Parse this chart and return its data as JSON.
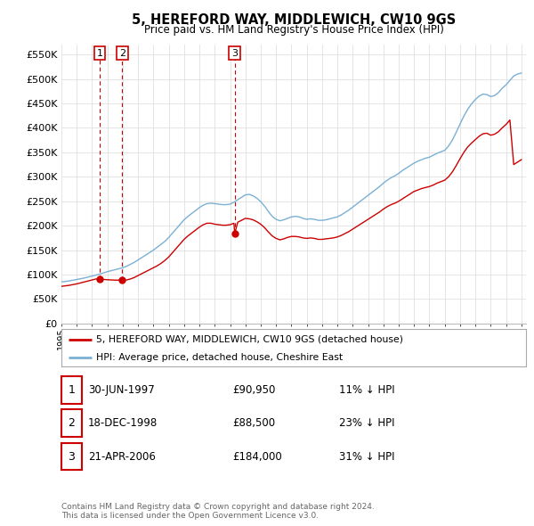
{
  "title": "5, HEREFORD WAY, MIDDLEWICH, CW10 9GS",
  "subtitle": "Price paid vs. HM Land Registry's House Price Index (HPI)",
  "ylim": [
    0,
    570000
  ],
  "yticks": [
    0,
    50000,
    100000,
    150000,
    200000,
    250000,
    300000,
    350000,
    400000,
    450000,
    500000,
    550000
  ],
  "ytick_labels": [
    "£0",
    "£50K",
    "£100K",
    "£150K",
    "£200K",
    "£250K",
    "£300K",
    "£350K",
    "£400K",
    "£450K",
    "£500K",
    "£550K"
  ],
  "xlim_start": 1995.0,
  "xlim_end": 2025.3,
  "sale_dates": [
    1997.496,
    1998.962,
    2006.306
  ],
  "sale_prices": [
    90950,
    88500,
    184000
  ],
  "sale_labels": [
    "1",
    "2",
    "3"
  ],
  "legend_red": "5, HEREFORD WAY, MIDDLEWICH, CW10 9GS (detached house)",
  "legend_blue": "HPI: Average price, detached house, Cheshire East",
  "table_rows": [
    [
      "1",
      "30-JUN-1997",
      "£90,950",
      "11% ↓ HPI"
    ],
    [
      "2",
      "18-DEC-1998",
      "£88,500",
      "23% ↓ HPI"
    ],
    [
      "3",
      "21-APR-2006",
      "£184,000",
      "31% ↓ HPI"
    ]
  ],
  "footer": "Contains HM Land Registry data © Crown copyright and database right 2024.\nThis data is licensed under the Open Government Licence v3.0.",
  "red_color": "#cc0000",
  "blue_color": "#7ab0d4",
  "grid_color": "#e0e0e0",
  "bg_color": "#ffffff",
  "hpi_x": [
    1995.0,
    1995.25,
    1995.5,
    1995.75,
    1996.0,
    1996.25,
    1996.5,
    1996.75,
    1997.0,
    1997.25,
    1997.5,
    1997.75,
    1998.0,
    1998.25,
    1998.5,
    1998.75,
    1999.0,
    1999.25,
    1999.5,
    1999.75,
    2000.0,
    2000.25,
    2000.5,
    2000.75,
    2001.0,
    2001.25,
    2001.5,
    2001.75,
    2002.0,
    2002.25,
    2002.5,
    2002.75,
    2003.0,
    2003.25,
    2003.5,
    2003.75,
    2004.0,
    2004.25,
    2004.5,
    2004.75,
    2005.0,
    2005.25,
    2005.5,
    2005.75,
    2006.0,
    2006.25,
    2006.5,
    2006.75,
    2007.0,
    2007.25,
    2007.5,
    2007.75,
    2008.0,
    2008.25,
    2008.5,
    2008.75,
    2009.0,
    2009.25,
    2009.5,
    2009.75,
    2010.0,
    2010.25,
    2010.5,
    2010.75,
    2011.0,
    2011.25,
    2011.5,
    2011.75,
    2012.0,
    2012.25,
    2012.5,
    2012.75,
    2013.0,
    2013.25,
    2013.5,
    2013.75,
    2014.0,
    2014.25,
    2014.5,
    2014.75,
    2015.0,
    2015.25,
    2015.5,
    2015.75,
    2016.0,
    2016.25,
    2016.5,
    2016.75,
    2017.0,
    2017.25,
    2017.5,
    2017.75,
    2018.0,
    2018.25,
    2018.5,
    2018.75,
    2019.0,
    2019.25,
    2019.5,
    2019.75,
    2020.0,
    2020.25,
    2020.5,
    2020.75,
    2021.0,
    2021.25,
    2021.5,
    2021.75,
    2022.0,
    2022.25,
    2022.5,
    2022.75,
    2023.0,
    2023.25,
    2023.5,
    2023.75,
    2024.0,
    2024.25,
    2024.5,
    2024.75,
    2025.0
  ],
  "hpi_y": [
    85000,
    86000,
    87000,
    88500,
    90000,
    91500,
    93000,
    95000,
    97000,
    99000,
    101000,
    103500,
    106000,
    108000,
    110000,
    112000,
    114000,
    117000,
    121000,
    125000,
    130000,
    135000,
    140000,
    145000,
    150000,
    156000,
    162000,
    168000,
    176000,
    185000,
    194000,
    203000,
    212000,
    219000,
    225000,
    231000,
    237000,
    242000,
    245000,
    246000,
    245000,
    244000,
    243000,
    243000,
    244000,
    248000,
    253000,
    258000,
    263000,
    264000,
    261000,
    256000,
    249000,
    240000,
    229000,
    219000,
    213000,
    210000,
    212000,
    215000,
    218000,
    219000,
    218000,
    215000,
    213000,
    214000,
    213000,
    211000,
    211000,
    212000,
    214000,
    216000,
    218000,
    222000,
    227000,
    232000,
    238000,
    244000,
    250000,
    256000,
    262000,
    268000,
    274000,
    280000,
    287000,
    293000,
    298000,
    302000,
    307000,
    313000,
    318000,
    323000,
    328000,
    332000,
    335000,
    338000,
    340000,
    344000,
    348000,
    351000,
    354000,
    363000,
    375000,
    391000,
    408000,
    424000,
    438000,
    449000,
    458000,
    465000,
    469000,
    468000,
    464000,
    466000,
    472000,
    481000,
    488000,
    497000,
    506000,
    510000,
    512000
  ],
  "red_x": [
    1995.0,
    1995.25,
    1995.5,
    1995.75,
    1996.0,
    1996.25,
    1996.5,
    1996.75,
    1997.0,
    1997.25,
    1997.496,
    1997.75,
    1998.0,
    1998.25,
    1998.5,
    1998.962,
    1999.0,
    1999.25,
    1999.5,
    1999.75,
    2000.0,
    2000.25,
    2000.5,
    2000.75,
    2001.0,
    2001.25,
    2001.5,
    2001.75,
    2002.0,
    2002.25,
    2002.5,
    2002.75,
    2003.0,
    2003.25,
    2003.5,
    2003.75,
    2004.0,
    2004.25,
    2004.5,
    2004.75,
    2005.0,
    2005.25,
    2005.5,
    2005.75,
    2006.0,
    2006.25,
    2006.306,
    2006.5,
    2006.75,
    2007.0,
    2007.25,
    2007.5,
    2007.75,
    2008.0,
    2008.25,
    2008.5,
    2008.75,
    2009.0,
    2009.25,
    2009.5,
    2009.75,
    2010.0,
    2010.25,
    2010.5,
    2010.75,
    2011.0,
    2011.25,
    2011.5,
    2011.75,
    2012.0,
    2012.25,
    2012.5,
    2012.75,
    2013.0,
    2013.25,
    2013.5,
    2013.75,
    2014.0,
    2014.25,
    2014.5,
    2014.75,
    2015.0,
    2015.25,
    2015.5,
    2015.75,
    2016.0,
    2016.25,
    2016.5,
    2016.75,
    2017.0,
    2017.25,
    2017.5,
    2017.75,
    2018.0,
    2018.25,
    2018.5,
    2018.75,
    2019.0,
    2019.25,
    2019.5,
    2019.75,
    2020.0,
    2020.25,
    2020.5,
    2020.75,
    2021.0,
    2021.25,
    2021.5,
    2021.75,
    2022.0,
    2022.25,
    2022.5,
    2022.75,
    2023.0,
    2023.25,
    2023.5,
    2023.75,
    2024.0,
    2024.25,
    2024.5,
    2024.75,
    2025.0
  ],
  "red_y": [
    76000,
    77000,
    78000,
    79500,
    81000,
    83000,
    85000,
    87000,
    89000,
    91000,
    90950,
    90000,
    89500,
    89000,
    88700,
    88500,
    88200,
    89000,
    91000,
    94000,
    98000,
    102000,
    106000,
    110000,
    114000,
    118000,
    123000,
    129000,
    136000,
    145000,
    154000,
    163000,
    172000,
    179000,
    185000,
    191000,
    197000,
    202000,
    205000,
    205000,
    203000,
    202000,
    201000,
    201000,
    202000,
    205000,
    184000,
    207000,
    211000,
    215000,
    214000,
    212000,
    208000,
    203000,
    196000,
    187000,
    179000,
    174000,
    171000,
    173000,
    176000,
    178000,
    178000,
    177000,
    175000,
    174000,
    175000,
    174000,
    172000,
    172000,
    173000,
    174000,
    175000,
    177000,
    180000,
    184000,
    188000,
    193000,
    198000,
    203000,
    208000,
    213000,
    218000,
    223000,
    228000,
    234000,
    239000,
    243000,
    246000,
    250000,
    255000,
    260000,
    265000,
    270000,
    273000,
    276000,
    278000,
    280000,
    283000,
    287000,
    290000,
    293000,
    300000,
    310000,
    323000,
    337000,
    350000,
    361000,
    369000,
    376000,
    383000,
    388000,
    389000,
    385000,
    387000,
    392000,
    400000,
    407000,
    416000,
    325000,
    330000,
    335000
  ]
}
